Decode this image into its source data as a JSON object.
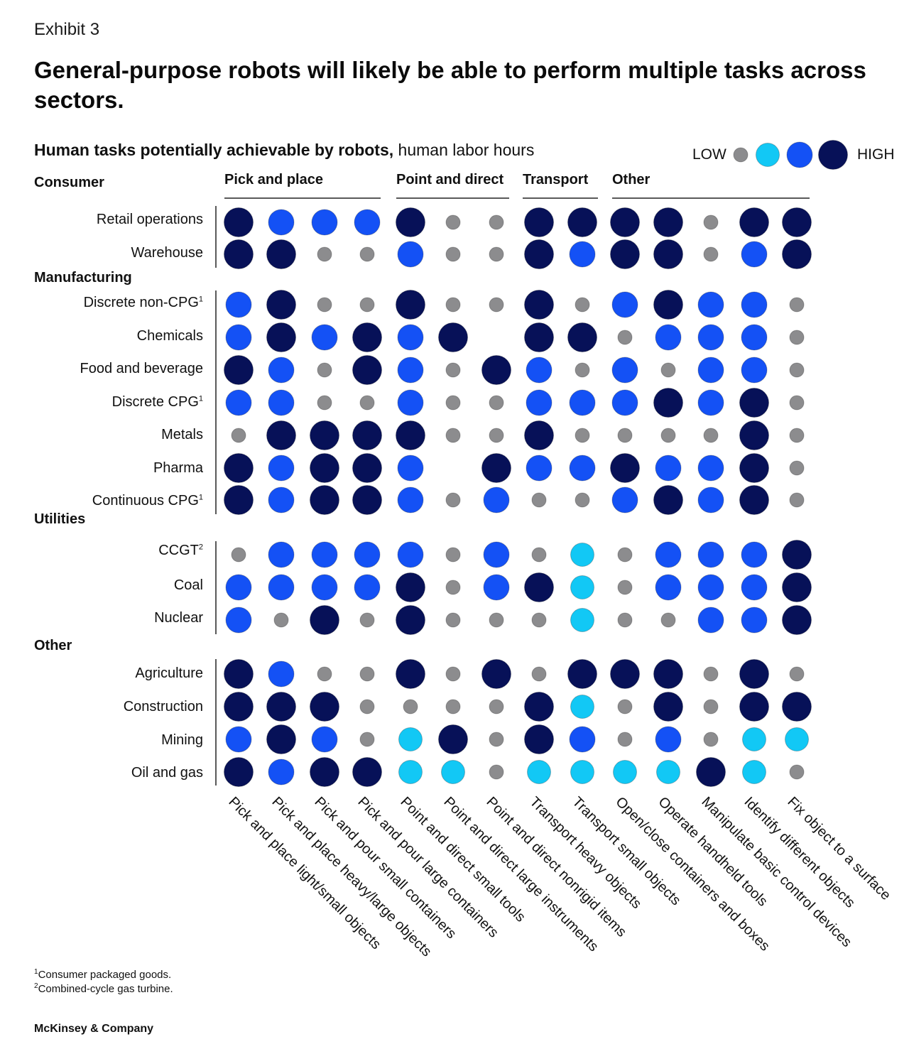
{
  "header": {
    "exhibit": "Exhibit 3",
    "title": "General-purpose robots will likely be able to perform multiple tasks across sectors."
  },
  "chart_data": {
    "type": "bubble-matrix",
    "title": "Human tasks potentially achievable by robots,",
    "subtitle": "human labor hours",
    "legend": {
      "low_label": "LOW",
      "high_label": "HIGH",
      "levels": [
        {
          "level": 1,
          "color": "#8c8c8e"
        },
        {
          "level": 2,
          "color": "#12c8f5"
        },
        {
          "level": 3,
          "color": "#1451f5"
        },
        {
          "level": 4,
          "color": "#071158"
        }
      ]
    },
    "column_groups": [
      {
        "name": "Pick and place",
        "columns": [
          0,
          1,
          2,
          3
        ]
      },
      {
        "name": "Point and direct",
        "columns": [
          4,
          5,
          6
        ]
      },
      {
        "name": "Transport",
        "columns": [
          7,
          8
        ]
      },
      {
        "name": "Other",
        "columns": [
          9,
          10,
          11,
          12,
          13
        ]
      }
    ],
    "columns": [
      "Pick and place light/small objects",
      "Pick and place heavy/large objects",
      "Pick and pour small containers",
      "Pick and pour large containers",
      "Point and direct small tools",
      "Point and direct large instruments",
      "Point and direct nonrigid items",
      "Transport heavy objects",
      "Transport small objects",
      "Open/close containers and boxes",
      "Operate handheld tools",
      "Manipulate basic control devices",
      "Identify different objects",
      "Fix object to a surface"
    ],
    "sectors": [
      {
        "name": "Consumer",
        "rows": [
          {
            "label": "Retail operations",
            "sup": "",
            "values": [
              4,
              3,
              3,
              3,
              4,
              1,
              1,
              4,
              4,
              4,
              4,
              1,
              4,
              4
            ]
          },
          {
            "label": "Warehouse",
            "sup": "",
            "values": [
              4,
              4,
              1,
              1,
              3,
              1,
              1,
              4,
              3,
              4,
              4,
              1,
              3,
              4
            ]
          }
        ]
      },
      {
        "name": "Manufacturing",
        "rows": [
          {
            "label": "Discrete non-CPG",
            "sup": "1",
            "values": [
              3,
              4,
              1,
              1,
              4,
              1,
              1,
              4,
              1,
              3,
              4,
              3,
              3,
              1
            ]
          },
          {
            "label": "Chemicals",
            "sup": "",
            "values": [
              3,
              4,
              3,
              4,
              3,
              4,
              0,
              4,
              4,
              1,
              3,
              3,
              3,
              1
            ]
          },
          {
            "label": "Food and beverage",
            "sup": "",
            "values": [
              4,
              3,
              1,
              4,
              3,
              1,
              4,
              3,
              1,
              3,
              1,
              3,
              3,
              1
            ]
          },
          {
            "label": "Discrete CPG",
            "sup": "1",
            "values": [
              3,
              3,
              1,
              1,
              3,
              1,
              1,
              3,
              3,
              3,
              4,
              3,
              4,
              1
            ]
          },
          {
            "label": "Metals",
            "sup": "",
            "values": [
              1,
              4,
              4,
              4,
              4,
              1,
              1,
              4,
              1,
              1,
              1,
              1,
              4,
              1
            ]
          },
          {
            "label": "Pharma",
            "sup": "",
            "values": [
              4,
              3,
              4,
              4,
              3,
              0,
              4,
              3,
              3,
              4,
              3,
              3,
              4,
              1
            ]
          },
          {
            "label": "Continuous CPG",
            "sup": "1",
            "values": [
              4,
              3,
              4,
              4,
              3,
              1,
              3,
              1,
              1,
              3,
              4,
              3,
              4,
              1
            ]
          }
        ]
      },
      {
        "name": "Utilities",
        "rows": [
          {
            "label": "CCGT",
            "sup": "2",
            "values": [
              1,
              3,
              3,
              3,
              3,
              1,
              3,
              1,
              2,
              1,
              3,
              3,
              3,
              4
            ]
          },
          {
            "label": "Coal",
            "sup": "",
            "values": [
              3,
              3,
              3,
              3,
              4,
              1,
              3,
              4,
              2,
              1,
              3,
              3,
              3,
              4
            ]
          },
          {
            "label": "Nuclear",
            "sup": "",
            "values": [
              3,
              1,
              4,
              1,
              4,
              1,
              1,
              1,
              2,
              1,
              1,
              3,
              3,
              4
            ]
          }
        ]
      },
      {
        "name": "Other",
        "rows": [
          {
            "label": "Agriculture",
            "sup": "",
            "values": [
              4,
              3,
              1,
              1,
              4,
              1,
              4,
              1,
              4,
              4,
              4,
              1,
              4,
              1
            ]
          },
          {
            "label": "Construction",
            "sup": "",
            "values": [
              4,
              4,
              4,
              1,
              1,
              1,
              1,
              4,
              2,
              1,
              4,
              1,
              4,
              4
            ]
          },
          {
            "label": "Mining",
            "sup": "",
            "values": [
              3,
              4,
              3,
              1,
              2,
              4,
              1,
              4,
              3,
              1,
              3,
              1,
              2,
              2
            ]
          },
          {
            "label": "Oil and gas",
            "sup": "",
            "values": [
              4,
              3,
              4,
              4,
              2,
              2,
              1,
              2,
              2,
              2,
              2,
              4,
              2,
              1
            ]
          }
        ]
      }
    ]
  },
  "footnotes": [
    {
      "sup": "1",
      "text": "Consumer packaged goods."
    },
    {
      "sup": "2",
      "text": "Combined-cycle gas turbine."
    }
  ],
  "footer": {
    "brand": "McKinsey & Company"
  }
}
